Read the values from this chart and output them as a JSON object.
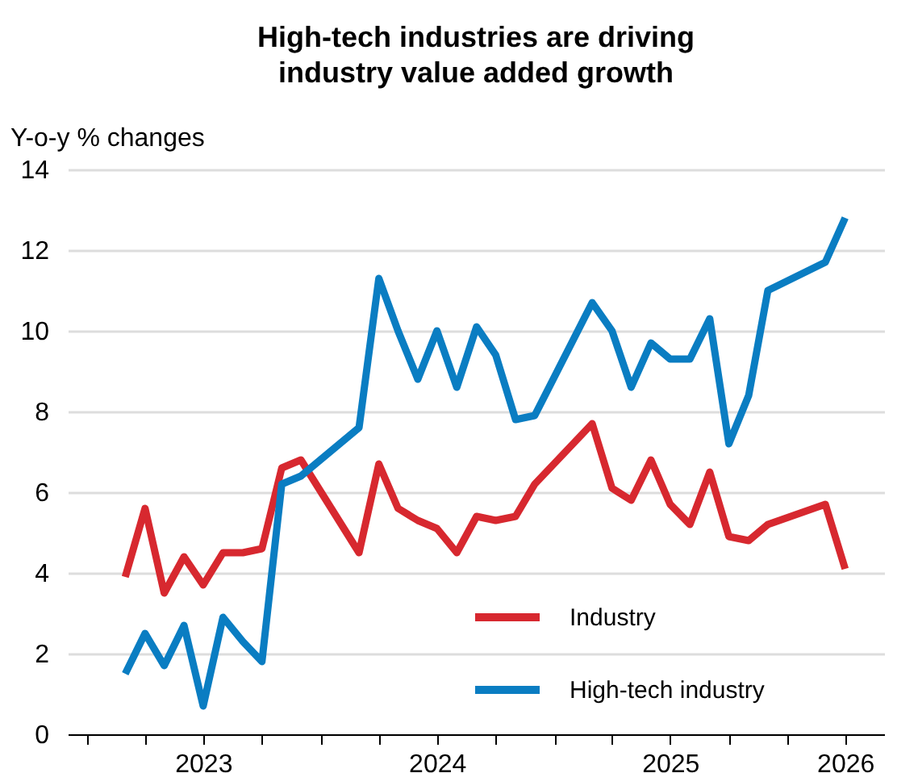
{
  "chart_data": {
    "type": "line",
    "title": "High-tech industries are driving\nindustry value added growth",
    "ylabel": "Y-o-y % changes",
    "x": [
      "2023-03",
      "2023-04",
      "2023-05",
      "2023-06",
      "2023-07",
      "2023-08",
      "2023-09",
      "2023-10",
      "2023-11",
      "2023-12",
      "2024-03",
      "2024-04",
      "2024-05",
      "2024-06",
      "2024-07",
      "2024-08",
      "2024-09",
      "2024-10",
      "2024-11",
      "2024-12",
      "2025-03",
      "2025-04",
      "2025-05",
      "2025-06",
      "2025-07",
      "2025-08",
      "2025-09",
      "2025-10",
      "2025-11",
      "2025-12",
      "2026-03",
      "2026-04"
    ],
    "series": [
      {
        "name": "Industry",
        "color": "#d7282f",
        "values": [
          3.9,
          5.6,
          3.5,
          4.4,
          3.7,
          4.5,
          4.5,
          4.6,
          6.6,
          6.8,
          4.5,
          6.7,
          5.6,
          5.3,
          5.1,
          4.5,
          5.4,
          5.3,
          5.4,
          6.2,
          7.7,
          6.1,
          5.8,
          6.8,
          5.7,
          5.2,
          6.5,
          4.9,
          4.8,
          5.2,
          5.7,
          4.1
        ]
      },
      {
        "name": "High-tech industry",
        "color": "#0a7dc2",
        "values": [
          1.5,
          2.5,
          1.7,
          2.7,
          0.7,
          2.9,
          2.3,
          1.8,
          6.2,
          6.4,
          7.6,
          11.3,
          10.0,
          8.8,
          10.0,
          8.6,
          10.1,
          9.4,
          7.8,
          7.9,
          10.7,
          10.0,
          8.6,
          9.7,
          9.3,
          9.3,
          10.3,
          7.2,
          8.4,
          11.0,
          11.7,
          12.8
        ]
      }
    ],
    "xlim": [
      "2022-12",
      "2026-06"
    ],
    "xticks": [
      {
        "value": "2023-01",
        "label": null
      },
      {
        "value": "2023-04",
        "label": null
      },
      {
        "value": "2023-07",
        "label": "2023"
      },
      {
        "value": "2023-10",
        "label": null
      },
      {
        "value": "2024-01",
        "label": null
      },
      {
        "value": "2024-04",
        "label": null
      },
      {
        "value": "2024-07",
        "label": "2024"
      },
      {
        "value": "2024-10",
        "label": null
      },
      {
        "value": "2025-01",
        "label": null
      },
      {
        "value": "2025-04",
        "label": null
      },
      {
        "value": "2025-07",
        "label": "2025"
      },
      {
        "value": "2025-10",
        "label": null
      },
      {
        "value": "2026-01",
        "label": null
      },
      {
        "value": "2026-04",
        "label": "2026"
      }
    ],
    "ylim": [
      0,
      14
    ],
    "yticks": [
      0,
      2,
      4,
      6,
      8,
      10,
      12,
      14
    ],
    "grid": "y",
    "legend": "bottom right",
    "marker": "none",
    "line_style": "solid"
  }
}
